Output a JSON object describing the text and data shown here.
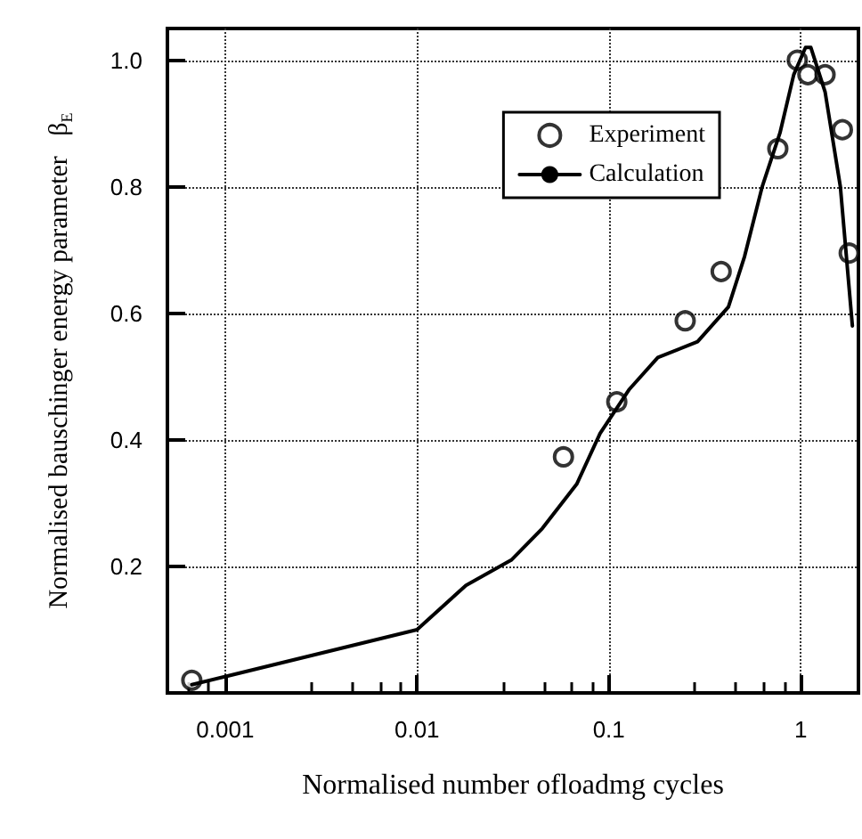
{
  "chart_data": {
    "type": "scatter",
    "xlabel": "Normalised number ofloadmg cycles",
    "ylabel": "Normalised bauschinger energy parameter   β$_{E}$",
    "log": "x",
    "xlim": [
      0.0005,
      2
    ],
    "xticks": [
      0.001,
      0.01,
      0.1,
      1
    ],
    "ylim": [
      0,
      1.05
    ],
    "yticks": [
      0.2,
      0.4,
      0.6,
      0.8,
      {
        "value": 1,
        "label": "1.0"
      }
    ],
    "grid": true,
    "legend": "top right",
    "series": [
      {
        "name": "Experiment",
        "marker": "circle",
        "color": "#000000",
        "x": [
          0.00067,
          0.058,
          0.11,
          0.25,
          0.385,
          0.76,
          0.96,
          1.09,
          1.34,
          1.65,
          1.79
        ],
        "values": [
          0.02,
          0.373,
          0.46,
          0.588,
          0.666,
          0.86,
          1.0,
          0.977,
          0.977,
          0.89,
          0.695
        ]
      },
      {
        "name": "Calculation",
        "type": "line",
        "marker": "none",
        "line_style": "solid",
        "color": "#000000",
        "x": [
          0.00067,
          0.01,
          0.018,
          0.031,
          0.045,
          0.068,
          0.09,
          0.128,
          0.18,
          0.29,
          0.42,
          0.51,
          0.63,
          0.78,
          0.92,
          1.06,
          1.13,
          1.34,
          1.61,
          1.86
        ],
        "values": [
          0.013,
          0.1,
          0.17,
          0.21,
          0.26,
          0.33,
          0.41,
          0.48,
          0.53,
          0.555,
          0.61,
          0.69,
          0.8,
          0.885,
          0.977,
          1.02,
          1.02,
          0.95,
          0.8,
          0.58
        ]
      }
    ]
  }
}
